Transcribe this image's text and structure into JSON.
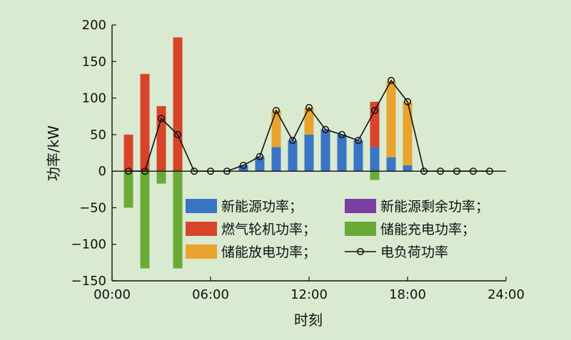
{
  "colors": {
    "background": "#d9ead0",
    "new_energy": "#3a74c4",
    "new_energy_surplus": "#7a3fa0",
    "gas_turbine": "#d8442a",
    "storage_charge": "#6aab38",
    "storage_discharge": "#e8a42e",
    "load": "#111111"
  },
  "chart_data": {
    "type": "bar",
    "xlabel": "时刻",
    "ylabel": "功率/kW",
    "ylim": [
      -150,
      200
    ],
    "xlim": [
      0,
      24
    ],
    "y_ticks": [
      "200",
      "150",
      "100",
      "50",
      "0",
      "−50",
      "−100",
      "−150"
    ],
    "x_ticks": [
      "00:00",
      "06:00",
      "12:00",
      "18:00",
      "24:00"
    ],
    "hours": [
      1,
      2,
      3,
      4,
      5,
      6,
      7,
      8,
      9,
      10,
      11,
      12,
      13,
      14,
      15,
      16,
      17,
      18,
      19,
      20,
      21,
      22,
      23
    ],
    "series": [
      {
        "name": "新能源功率；",
        "key": "new_energy",
        "values": [
          0,
          0,
          0,
          0,
          0,
          0,
          0,
          8,
          20,
          33,
          42,
          50,
          57,
          50,
          42,
          33,
          19,
          8,
          0,
          0,
          0,
          0,
          0
        ]
      },
      {
        "name": "新能源剩余功率；",
        "key": "new_energy_surplus",
        "values": [
          0,
          0,
          0,
          0,
          0,
          0,
          0,
          0,
          0,
          0,
          0,
          0,
          0,
          0,
          0,
          0,
          0,
          0,
          0,
          0,
          0,
          0,
          0
        ]
      },
      {
        "name": "燃气轮机功率；",
        "key": "gas_turbine",
        "values": [
          50,
          133,
          89,
          183,
          0,
          0,
          0,
          0,
          0,
          0,
          0,
          0,
          0,
          0,
          0,
          62,
          0,
          0,
          0,
          0,
          0,
          0,
          0
        ]
      },
      {
        "name": "储能充电功率；",
        "key": "storage_charge",
        "values": [
          -50,
          -133,
          -17,
          -133,
          0,
          0,
          0,
          0,
          0,
          0,
          0,
          0,
          0,
          0,
          0,
          -12,
          0,
          0,
          0,
          0,
          0,
          0,
          0
        ]
      },
      {
        "name": "储能放电功率；",
        "key": "storage_discharge",
        "values": [
          0,
          0,
          0,
          0,
          0,
          0,
          0,
          0,
          0,
          50,
          0,
          37,
          0,
          0,
          0,
          0,
          104,
          87,
          0,
          0,
          0,
          0,
          0
        ]
      },
      {
        "name": "电负荷功率",
        "key": "load",
        "type": "line",
        "values": [
          0,
          0,
          72,
          50,
          0,
          0,
          0,
          8,
          20,
          83,
          42,
          87,
          57,
          50,
          42,
          83,
          124,
          95,
          0,
          0,
          0,
          0,
          0
        ]
      }
    ],
    "legend_position": "bottom-right"
  }
}
